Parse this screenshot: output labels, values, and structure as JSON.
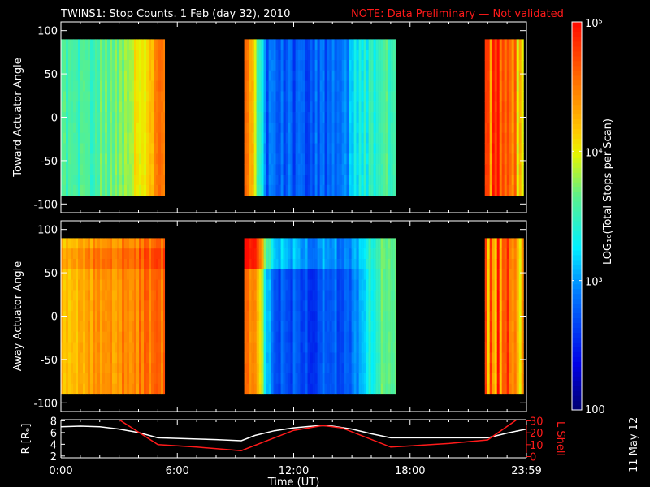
{
  "title": "TWINS1: Stop Counts.  1 Feb (day  32), 2010",
  "note": "NOTE: Data Preliminary — Not validated",
  "side_label": "11 May 12",
  "colors": {
    "note": "#ff1a1a",
    "lshell": "#ff1a1a",
    "axes": "#ffffff",
    "background": "#000000"
  },
  "chart_data": [
    {
      "type": "heatmap",
      "name": "toward",
      "ylabel": "Toward Actuator Angle",
      "ylim": [
        -110,
        110
      ],
      "yticks": [
        "100",
        "50",
        "0",
        "-50",
        "-100"
      ],
      "ytick_values": [
        100,
        50,
        0,
        -50,
        -100
      ],
      "angle_range": [
        -90,
        90
      ],
      "segments": [
        {
          "start_h": 0.0,
          "end_h": 5.35,
          "profile": [
            [
              0,
              3.6
            ],
            [
              1,
              3.55
            ],
            [
              2,
              3.65
            ],
            [
              3,
              3.8
            ],
            [
              4,
              4.0
            ],
            [
              4.6,
              4.3
            ],
            [
              5.0,
              4.6
            ],
            [
              5.35,
              4.6
            ]
          ]
        },
        {
          "start_h": 9.45,
          "end_h": 17.25,
          "profile": [
            [
              9.45,
              4.5
            ],
            [
              9.8,
              4.3
            ],
            [
              10.1,
              3.5
            ],
            [
              10.6,
              2.8
            ],
            [
              12,
              2.75
            ],
            [
              14,
              2.8
            ],
            [
              14.8,
              3.0
            ],
            [
              15.2,
              3.3
            ],
            [
              16,
              3.4
            ],
            [
              17.25,
              3.6
            ]
          ]
        },
        {
          "start_h": 21.85,
          "end_h": 23.85,
          "profile": [
            [
              21.85,
              4.5
            ],
            [
              22.5,
              4.6
            ],
            [
              23.3,
              4.4
            ],
            [
              23.85,
              4.3
            ]
          ]
        }
      ]
    },
    {
      "type": "heatmap",
      "name": "away",
      "ylabel": "Away Actuator Angle",
      "ylim": [
        -110,
        110
      ],
      "yticks": [
        "100",
        "50",
        "0",
        "-50",
        "-100"
      ],
      "ytick_values": [
        100,
        50,
        0,
        -50,
        -100
      ],
      "angle_range": [
        -90,
        90
      ],
      "segments": [
        {
          "start_h": 0.0,
          "end_h": 5.35,
          "profile": [
            [
              0,
              4.25
            ],
            [
              1,
              4.3
            ],
            [
              2,
              4.35
            ],
            [
              3,
              4.45
            ],
            [
              4,
              4.5
            ],
            [
              5,
              4.6
            ],
            [
              5.35,
              4.5
            ]
          ]
        },
        {
          "start_h": 9.45,
          "end_h": 17.25,
          "profile": [
            [
              9.45,
              4.5
            ],
            [
              10.0,
              4.4
            ],
            [
              10.5,
              3.3
            ],
            [
              11,
              2.8
            ],
            [
              13,
              2.7
            ],
            [
              14.5,
              2.8
            ],
            [
              15.3,
              3.0
            ],
            [
              16,
              3.4
            ],
            [
              16.5,
              3.6
            ],
            [
              17.25,
              3.8
            ]
          ]
        },
        {
          "start_h": 21.85,
          "end_h": 23.85,
          "profile": [
            [
              21.85,
              4.5
            ],
            [
              22.5,
              4.6
            ],
            [
              23.3,
              4.45
            ],
            [
              23.85,
              4.3
            ]
          ]
        }
      ]
    },
    {
      "type": "line",
      "name": "orbit",
      "ylabel": "R [Rₑ]",
      "y2label": "L Shell",
      "yticks": [
        "2",
        "4",
        "6",
        "8"
      ],
      "y2ticks": [
        "0",
        "10",
        "20",
        "30"
      ],
      "ylim": [
        1.7,
        8.2
      ],
      "y2lim": [
        -1,
        31
      ],
      "series": [
        {
          "name": "R",
          "color": "#ffffff",
          "x": [
            0,
            1,
            2,
            3,
            4,
            5,
            6,
            7,
            8,
            9.3,
            10,
            11,
            12,
            13,
            13.5,
            14,
            15,
            16,
            17,
            18,
            20,
            22,
            23,
            24
          ],
          "y": [
            7.0,
            7.1,
            7.0,
            6.6,
            6.0,
            5.1,
            5.0,
            4.9,
            4.8,
            4.6,
            5.5,
            6.3,
            6.8,
            7.1,
            7.2,
            7.1,
            6.6,
            5.8,
            5.1,
            5.1,
            5.1,
            5.1,
            5.9,
            6.6
          ]
        },
        {
          "name": "L Shell",
          "color": "#ff1a1a",
          "x": [
            3.0,
            5.0,
            7,
            9.3,
            12,
            13.5,
            14.5,
            17.0,
            20,
            22,
            23.5
          ],
          "y": [
            31,
            10,
            8,
            5,
            22,
            26,
            24,
            8,
            11,
            14,
            31
          ]
        }
      ],
      "xticks": [
        "0:00",
        "6:00",
        "12:00",
        "18:00",
        "23:59"
      ],
      "xtick_hours": [
        0,
        6,
        12,
        18,
        24
      ],
      "xlabel": "Time (UT)"
    }
  ],
  "colorbar": {
    "label": "LOG₁₀(Total Stops per Scan)",
    "ticks": [
      "100",
      "10³",
      "10⁴",
      "10⁵"
    ],
    "tick_logs": [
      2,
      3,
      4,
      5
    ],
    "range_log": [
      2,
      5
    ]
  }
}
